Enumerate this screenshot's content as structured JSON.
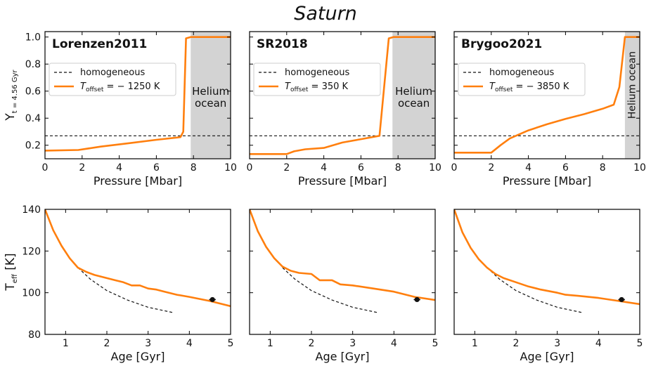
{
  "figure": {
    "title": "Saturn"
  },
  "colors": {
    "model": "#ff7f0e",
    "homogeneous": "#111111",
    "ocean_fill": "#d3d3d3",
    "Lorenzen2011": "#87ceeb",
    "SR2018": "#f4a770",
    "Brygoo2021": "#f06060",
    "observation": "#111111"
  },
  "chart_data": [
    {
      "type": "line",
      "panel": "top-left",
      "model_name": "Lorenzen2011",
      "xlabel": "Pressure [Mbar]",
      "ylabel": "Y_{t = 4.56 Gyr}",
      "ylabel_main": "Y",
      "ylabel_sub": "t = 4.56 Gyr",
      "xlim": [
        0,
        10
      ],
      "ylim": [
        0.1,
        1.04
      ],
      "xticks": [
        0,
        2,
        4,
        6,
        8,
        10
      ],
      "yticks": [
        0.2,
        0.4,
        0.6,
        0.8,
        1.0
      ],
      "xtick_labels": [
        "0",
        "2",
        "4",
        "6",
        "8",
        "10"
      ],
      "ytick_labels": [
        "0.2",
        "0.4",
        "0.6",
        "0.8",
        "1.0"
      ],
      "legend": {
        "placement": "upper-left",
        "homogeneous_label": "homogeneous",
        "offset_label": "T",
        "offset_sub": "offset",
        "offset_value": " = − 1250 K"
      },
      "ocean": {
        "label_line1": "Helium",
        "label_line2": "ocean",
        "x_start": 7.85,
        "x_end": 10,
        "vertical": false
      },
      "series": [
        {
          "name": "homogeneous",
          "style": "dashed",
          "x": [
            0,
            10
          ],
          "y": [
            0.27,
            0.27
          ]
        },
        {
          "name": "T_offset = − 1250 K",
          "style": "solid",
          "x": [
            0,
            1.8,
            3,
            4.5,
            6,
            7.3,
            7.45,
            7.6,
            7.85,
            10
          ],
          "y": [
            0.16,
            0.165,
            0.19,
            0.215,
            0.24,
            0.26,
            0.3,
            0.99,
            1.0,
            1.0
          ]
        }
      ]
    },
    {
      "type": "line",
      "panel": "top-middle",
      "model_name": "SR2018",
      "xlabel": "Pressure [Mbar]",
      "ylabel": "",
      "xlim": [
        0,
        10
      ],
      "ylim": [
        0.1,
        1.04
      ],
      "xticks": [
        0,
        2,
        4,
        6,
        8,
        10
      ],
      "yticks": [
        0.2,
        0.4,
        0.6,
        0.8,
        1.0
      ],
      "xtick_labels": [
        "0",
        "2",
        "4",
        "6",
        "8",
        "10"
      ],
      "ytick_labels": [],
      "legend": {
        "placement": "upper-left",
        "homogeneous_label": "homogeneous",
        "offset_label": "T",
        "offset_sub": "offset",
        "offset_value": " = 350 K"
      },
      "ocean": {
        "label_line1": "Helium",
        "label_line2": "ocean",
        "x_start": 7.7,
        "x_end": 10,
        "vertical": false
      },
      "series": [
        {
          "name": "homogeneous",
          "style": "dashed",
          "x": [
            0,
            10
          ],
          "y": [
            0.27,
            0.27
          ]
        },
        {
          "name": "T_offset = 350 K",
          "style": "solid",
          "x": [
            0,
            2,
            2.4,
            3,
            4,
            5,
            6,
            7,
            7.5,
            7.75,
            10
          ],
          "y": [
            0.135,
            0.135,
            0.155,
            0.17,
            0.18,
            0.22,
            0.245,
            0.27,
            0.99,
            1.0,
            1.0
          ]
        }
      ]
    },
    {
      "type": "line",
      "panel": "top-right",
      "model_name": "Brygoo2021",
      "xlabel": "Pressure [Mbar]",
      "ylabel": "",
      "xlim": [
        0,
        10
      ],
      "ylim": [
        0.1,
        1.04
      ],
      "xticks": [
        0,
        2,
        4,
        6,
        8,
        10
      ],
      "yticks": [
        0.2,
        0.4,
        0.6,
        0.8,
        1.0
      ],
      "xtick_labels": [
        "0",
        "2",
        "4",
        "6",
        "8",
        "10"
      ],
      "ytick_labels": [],
      "legend": {
        "placement": "upper-left",
        "homogeneous_label": "homogeneous",
        "offset_label": "T",
        "offset_sub": "offset",
        "offset_value": " = − 3850 K"
      },
      "ocean": {
        "label_line1": "Helium ocean",
        "label_line2": "",
        "x_start": 9.2,
        "x_end": 10,
        "vertical": true
      },
      "series": [
        {
          "name": "homogeneous",
          "style": "dashed",
          "x": [
            0,
            10
          ],
          "y": [
            0.27,
            0.27
          ]
        },
        {
          "name": "T_offset = − 3850 K",
          "style": "solid",
          "x": [
            0,
            2,
            2.5,
            3,
            4,
            5,
            6,
            7,
            8,
            8.6,
            8.9,
            9.2,
            10
          ],
          "y": [
            0.145,
            0.145,
            0.2,
            0.25,
            0.31,
            0.355,
            0.395,
            0.43,
            0.47,
            0.5,
            0.63,
            1.0,
            1.0
          ]
        }
      ]
    },
    {
      "type": "line",
      "panel": "bottom-left",
      "xlabel": "Age [Gyr]",
      "ylabel": "T_eff [K]",
      "ylabel_main": "T",
      "ylabel_sub": "eff",
      "ylabel_unit": " [K]",
      "xlim": [
        0.5,
        5
      ],
      "ylim": [
        80,
        140
      ],
      "xticks": [
        1,
        2,
        3,
        4,
        5
      ],
      "yticks": [
        80,
        100,
        120,
        140
      ],
      "xtick_labels": [
        "1",
        "2",
        "3",
        "4",
        "5"
      ],
      "ytick_labels": [
        "80",
        "100",
        "120",
        "140"
      ],
      "observation": {
        "x": 4.56,
        "y": 96.7,
        "xerr": 0.08,
        "yerr": 0.7
      },
      "series": [
        {
          "name": "homogeneous",
          "style": "dashed",
          "x": [
            1.3,
            1.6,
            2.0,
            2.5,
            3.0,
            3.6
          ],
          "y": [
            112,
            106.5,
            101,
            96.5,
            93,
            90.5
          ]
        },
        {
          "name": "model",
          "style": "solid",
          "x": [
            0.5,
            0.7,
            0.9,
            1.1,
            1.3,
            1.5,
            1.7,
            2.0,
            2.2,
            2.4,
            2.6,
            2.8,
            3.0,
            3.2,
            3.4,
            3.7,
            4.0,
            4.5,
            5.0
          ],
          "y": [
            140,
            130,
            122.5,
            116.5,
            112,
            110,
            108.5,
            107,
            106,
            105,
            103.5,
            103.5,
            102,
            101.5,
            100.5,
            99,
            98,
            96,
            93.5
          ]
        }
      ]
    },
    {
      "type": "line",
      "panel": "bottom-middle",
      "xlabel": "Age [Gyr]",
      "ylabel": "",
      "xlim": [
        0.5,
        5
      ],
      "ylim": [
        80,
        140
      ],
      "xticks": [
        1,
        2,
        3,
        4,
        5
      ],
      "yticks": [
        80,
        100,
        120,
        140
      ],
      "xtick_labels": [
        "1",
        "2",
        "3",
        "4",
        "5"
      ],
      "ytick_labels": [],
      "observation": {
        "x": 4.56,
        "y": 96.7,
        "xerr": 0.08,
        "yerr": 0.7
      },
      "series": [
        {
          "name": "homogeneous",
          "style": "dashed",
          "x": [
            1.3,
            1.6,
            2.0,
            2.5,
            3.0,
            3.6
          ],
          "y": [
            112,
            106.5,
            101,
            96.5,
            93,
            90.5
          ]
        },
        {
          "name": "model",
          "style": "solid",
          "x": [
            0.5,
            0.7,
            0.9,
            1.1,
            1.3,
            1.5,
            1.7,
            2.0,
            2.2,
            2.5,
            2.7,
            3.0,
            3.5,
            4.0,
            4.5,
            5.0
          ],
          "y": [
            140,
            129.5,
            122,
            116.5,
            112.5,
            110.5,
            109.5,
            109,
            106,
            106,
            104,
            103.5,
            102,
            100.5,
            98,
            96.5
          ]
        }
      ]
    },
    {
      "type": "line",
      "panel": "bottom-right",
      "xlabel": "Age [Gyr]",
      "ylabel": "",
      "xlim": [
        0.5,
        5
      ],
      "ylim": [
        80,
        140
      ],
      "xticks": [
        1,
        2,
        3,
        4,
        5
      ],
      "yticks": [
        80,
        100,
        120,
        140
      ],
      "xtick_labels": [
        "1",
        "2",
        "3",
        "4",
        "5"
      ],
      "ytick_labels": [],
      "observation": {
        "x": 4.56,
        "y": 96.7,
        "xerr": 0.08,
        "yerr": 0.7
      },
      "series": [
        {
          "name": "homogeneous",
          "style": "dashed",
          "x": [
            1.3,
            1.6,
            2.0,
            2.5,
            3.0,
            3.6
          ],
          "y": [
            112,
            106.5,
            101,
            96.5,
            93,
            90.5
          ]
        },
        {
          "name": "model",
          "style": "solid",
          "x": [
            0.5,
            0.7,
            0.9,
            1.1,
            1.3,
            1.5,
            1.7,
            2.0,
            2.3,
            2.6,
            3.0,
            3.2,
            3.5,
            4.0,
            4.5,
            5.0
          ],
          "y": [
            140,
            129,
            121.5,
            116,
            112,
            109,
            107,
            105,
            103,
            101.5,
            100,
            99,
            98.5,
            97.5,
            96,
            94.5
          ]
        }
      ]
    }
  ]
}
